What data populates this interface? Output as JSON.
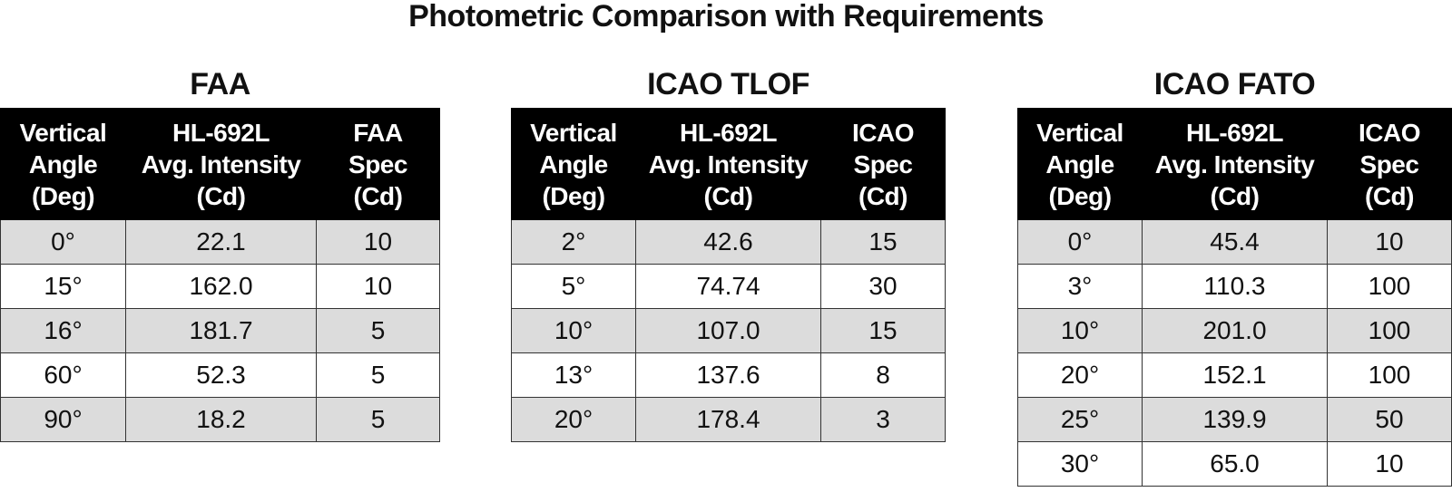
{
  "title": "Photometric Comparison with Requirements",
  "tables": [
    {
      "title": "FAA",
      "headers": [
        [
          "Vertical",
          "Angle",
          "(Deg)"
        ],
        [
          "HL-692L",
          "Avg. Intensity",
          "(Cd)"
        ],
        [
          "FAA",
          "Spec",
          "(Cd)"
        ]
      ],
      "rows": [
        [
          "0°",
          "22.1",
          "10"
        ],
        [
          "15°",
          "162.0",
          "10"
        ],
        [
          "16°",
          "181.7",
          "5"
        ],
        [
          "60°",
          "52.3",
          "5"
        ],
        [
          "90°",
          "18.2",
          "5"
        ]
      ]
    },
    {
      "title": "ICAO TLOF",
      "headers": [
        [
          "Vertical",
          "Angle",
          "(Deg)"
        ],
        [
          "HL-692L",
          "Avg. Intensity",
          "(Cd)"
        ],
        [
          "ICAO",
          "Spec",
          "(Cd)"
        ]
      ],
      "rows": [
        [
          "2°",
          "42.6",
          "15"
        ],
        [
          "5°",
          "74.74",
          "30"
        ],
        [
          "10°",
          "107.0",
          "15"
        ],
        [
          "13°",
          "137.6",
          "8"
        ],
        [
          "20°",
          "178.4",
          "3"
        ]
      ]
    },
    {
      "title": "ICAO FATO",
      "headers": [
        [
          "Vertical",
          "Angle",
          "(Deg)"
        ],
        [
          "HL-692L",
          "Avg. Intensity",
          "(Cd)"
        ],
        [
          "ICAO",
          "Spec",
          "(Cd)"
        ]
      ],
      "rows": [
        [
          "0°",
          "45.4",
          "10"
        ],
        [
          "3°",
          "110.3",
          "100"
        ],
        [
          "10°",
          "201.0",
          "100"
        ],
        [
          "20°",
          "152.1",
          "100"
        ],
        [
          "25°",
          "139.9",
          "50"
        ],
        [
          "30°",
          "65.0",
          "10"
        ]
      ]
    }
  ]
}
